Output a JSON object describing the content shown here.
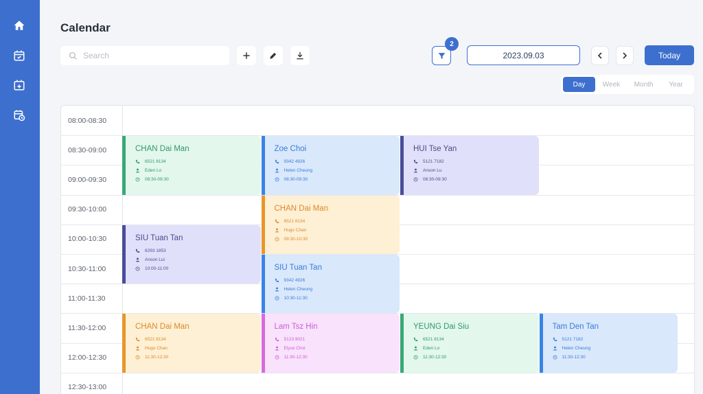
{
  "page": {
    "title": "Calendar"
  },
  "sidebar": {
    "items": [
      {
        "icon": "home-icon"
      },
      {
        "icon": "calendar-check-icon"
      },
      {
        "icon": "calendar-add-icon"
      },
      {
        "icon": "calendar-clock-icon"
      }
    ]
  },
  "toolbar": {
    "search_placeholder": "Search",
    "filter_count": "2",
    "date": "2023.09.03",
    "today_label": "Today"
  },
  "views": [
    "Day",
    "Week",
    "Month",
    "Year"
  ],
  "active_view": "Day",
  "time_slots": [
    "08:00-08:30",
    "08:30-09:00",
    "09:00-09:30",
    "09:30-10:00",
    "10:00-10:30",
    "10:30-11:00",
    "11:00-11:30",
    "11:30-12:00",
    "12:00-12:30",
    "12:30-13:00"
  ],
  "events": [
    {
      "name": "CHAN Dai Man",
      "phone": "6521 8134",
      "staff": "Eden Lo",
      "time": "08:30-09:30",
      "theme": "green",
      "col": 0,
      "start": 1,
      "span": 2
    },
    {
      "name": "Zoe Choi",
      "phone": "9342 4926",
      "staff": "Helen Cheung",
      "time": "08:30-09:30",
      "theme": "blue",
      "col": 1,
      "start": 1,
      "span": 2
    },
    {
      "name": "HUI Tse Yan",
      "phone": "5121 7182",
      "staff": "Anson Lu",
      "time": "08:30-09:30",
      "theme": "purple",
      "col": 2,
      "start": 1,
      "span": 2
    },
    {
      "name": "CHAN Dai Man",
      "phone": "6521 8134",
      "staff": "Hugo Chan",
      "time": "09:30-10:30",
      "theme": "orange",
      "col": 1,
      "start": 3,
      "span": 2
    },
    {
      "name": "SIU Tuan Tan",
      "phone": "6293 1853",
      "staff": "Anson Lui",
      "time": "10:00-11:00",
      "theme": "purple",
      "col": 0,
      "start": 4,
      "span": 2
    },
    {
      "name": "SIU Tuan Tan",
      "phone": "9342 4926",
      "staff": "Helen Cheung",
      "time": "10:30-11:30",
      "theme": "blue",
      "col": 1,
      "start": 5,
      "span": 2
    },
    {
      "name": "CHAN Dai Man",
      "phone": "6521 8134",
      "staff": "Hugo Chan",
      "time": "11:30-12:30",
      "theme": "orange",
      "col": 0,
      "start": 7,
      "span": 2
    },
    {
      "name": "Lam Tsz Hin",
      "phone": "5123 9021",
      "staff": "Elyse Choi",
      "time": "11:30-12:30",
      "theme": "pink",
      "col": 1,
      "start": 7,
      "span": 2
    },
    {
      "name": "YEUNG Dai Siu",
      "phone": "6521 8134",
      "staff": "Eden Lo",
      "time": "11:30-12:30",
      "theme": "green",
      "col": 2,
      "start": 7,
      "span": 2
    },
    {
      "name": "Tam Den Tan",
      "phone": "5121 7182",
      "staff": "Helen Cheung",
      "time": "11:30-12:30",
      "theme": "blue",
      "col": 3,
      "start": 7,
      "span": 2
    }
  ],
  "themes": {
    "green": {
      "bg": "#e3f7ec",
      "stripe": "#3aa876",
      "text": "#2f9a68"
    },
    "blue": {
      "bg": "#d9e8fb",
      "stripe": "#3a83e6",
      "text": "#3a7bd9"
    },
    "purple": {
      "bg": "#e1e0fa",
      "stripe": "#4a4d9a",
      "text": "#4a4d8a"
    },
    "orange": {
      "bg": "#fdf0d4",
      "stripe": "#e8962c",
      "text": "#e0892a"
    },
    "pink": {
      "bg": "#f9e2fb",
      "stripe": "#d66ae0",
      "text": "#c95fd6"
    }
  }
}
